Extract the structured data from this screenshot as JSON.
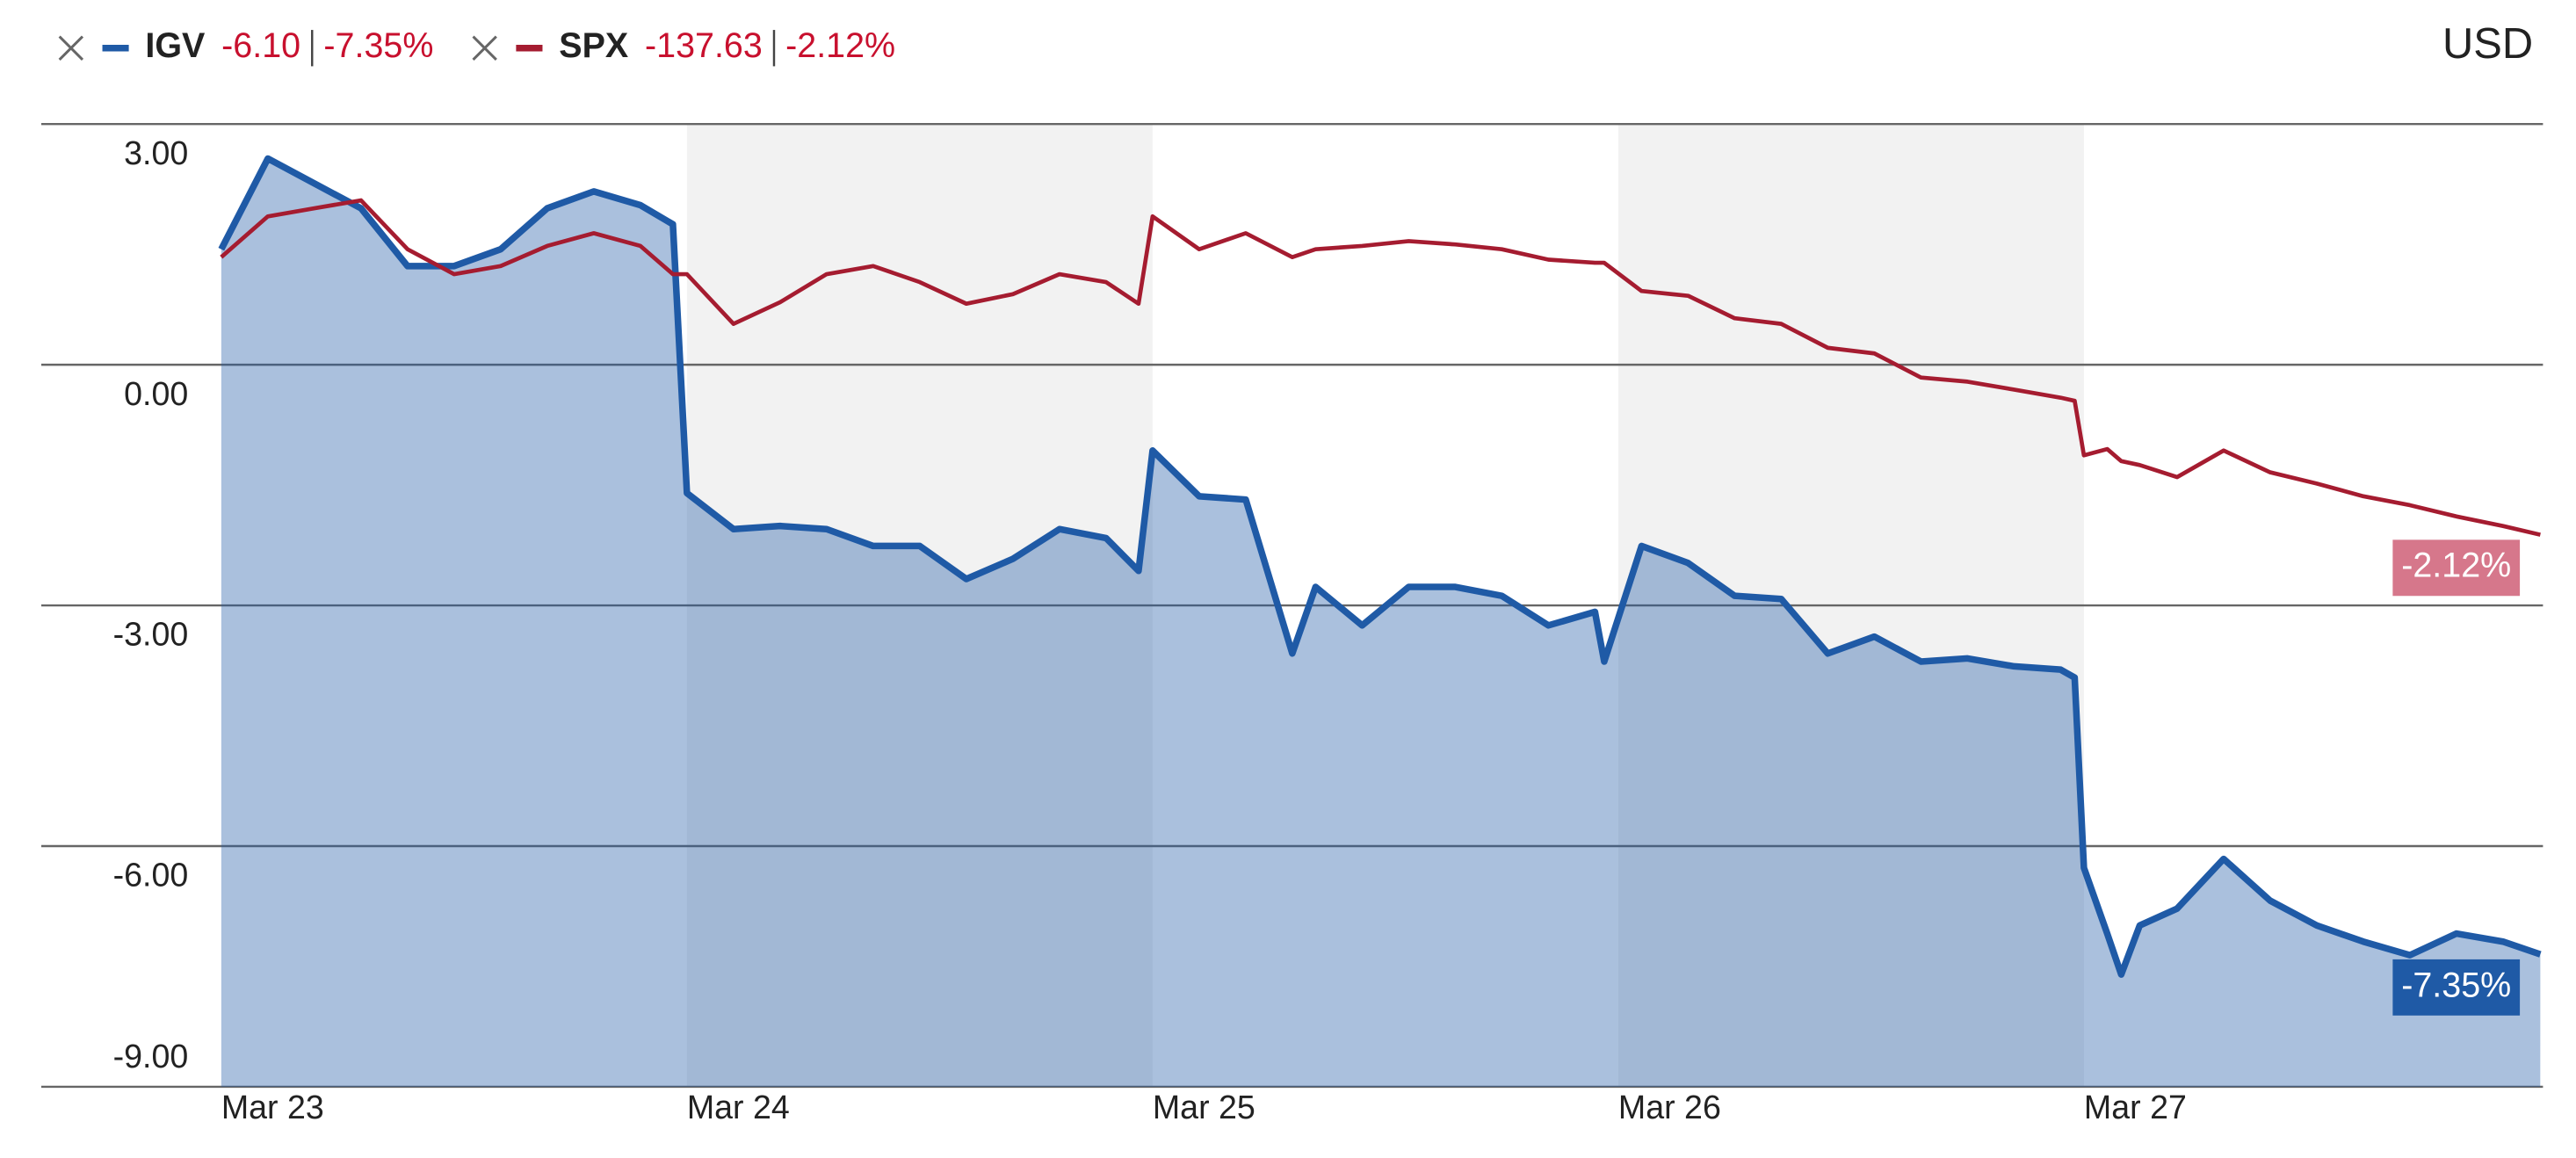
{
  "chart_data": {
    "type": "line",
    "currency": "USD",
    "x": [
      0,
      0.1,
      0.2,
      0.3,
      0.4,
      0.5,
      0.6,
      0.7,
      0.8,
      0.9,
      0.97,
      1.0,
      1.1,
      1.2,
      1.3,
      1.4,
      1.5,
      1.6,
      1.7,
      1.8,
      1.9,
      1.97,
      2.0,
      2.1,
      2.2,
      2.3,
      2.35,
      2.45,
      2.55,
      2.65,
      2.75,
      2.85,
      2.95,
      2.97,
      3.05,
      3.15,
      3.25,
      3.35,
      3.45,
      3.55,
      3.65,
      3.75,
      3.85,
      3.95,
      3.98,
      4.0,
      4.05,
      4.08,
      4.12,
      4.2,
      4.3,
      4.4,
      4.5,
      4.6,
      4.7,
      4.8,
      4.9,
      4.98
    ],
    "xlim": [
      0,
      5
    ],
    "xticks": [
      {
        "value": 0,
        "label": "Mar 23"
      },
      {
        "value": 1,
        "label": "Mar 24"
      },
      {
        "value": 2,
        "label": "Mar 25"
      },
      {
        "value": 3,
        "label": "Mar 26"
      },
      {
        "value": 4,
        "label": "Mar 27"
      }
    ],
    "ylim": [
      -9,
      3
    ],
    "yticks": [
      {
        "value": 3,
        "label": "3.00"
      },
      {
        "value": 0,
        "label": "0.00"
      },
      {
        "value": -3,
        "label": "-3.00"
      },
      {
        "value": -6,
        "label": "-6.00"
      },
      {
        "value": -9,
        "label": "-9.00"
      }
    ],
    "grid": true,
    "series": [
      {
        "name": "IGV",
        "color": "#1f5aa6",
        "fill": true,
        "change": "-6.10",
        "change_pct": "-7.35%",
        "values": [
          1.44,
          2.57,
          2.26,
          1.95,
          1.23,
          1.23,
          1.44,
          1.95,
          2.16,
          1.99,
          1.75,
          -1.6,
          -2.05,
          -2.01,
          -2.05,
          -2.26,
          -2.26,
          -2.67,
          -2.42,
          -2.05,
          -2.16,
          -2.57,
          -1.07,
          -1.64,
          -1.68,
          -3.6,
          -2.77,
          -3.25,
          -2.77,
          -2.77,
          -2.88,
          -3.25,
          -3.08,
          -3.7,
          -2.26,
          -2.47,
          -2.88,
          -2.92,
          -3.6,
          -3.39,
          -3.7,
          -3.66,
          -3.76,
          -3.8,
          -3.9,
          -6.27,
          -7.09,
          -7.6,
          -6.99,
          -6.78,
          -6.16,
          -6.68,
          -6.99,
          -7.19,
          -7.36,
          -7.09,
          -7.19,
          -7.35
        ]
      },
      {
        "name": "SPX",
        "color": "#a51c30",
        "label_color": "#d6778b",
        "fill": false,
        "change": "-137.63",
        "change_pct": "-2.12%",
        "values": [
          1.34,
          1.85,
          1.95,
          2.05,
          1.44,
          1.13,
          1.23,
          1.48,
          1.64,
          1.48,
          1.13,
          1.13,
          0.51,
          0.78,
          1.13,
          1.23,
          1.03,
          0.76,
          0.88,
          1.13,
          1.03,
          0.76,
          1.85,
          1.44,
          1.64,
          1.34,
          1.44,
          1.48,
          1.54,
          1.5,
          1.44,
          1.31,
          1.27,
          1.27,
          0.92,
          0.86,
          0.58,
          0.51,
          0.21,
          0.14,
          -0.16,
          -0.21,
          -0.31,
          -0.41,
          -0.45,
          -1.13,
          -1.05,
          -1.2,
          -1.25,
          -1.4,
          -1.07,
          -1.34,
          -1.48,
          -1.64,
          -1.75,
          -1.89,
          -2.01,
          -2.12
        ]
      }
    ]
  }
}
